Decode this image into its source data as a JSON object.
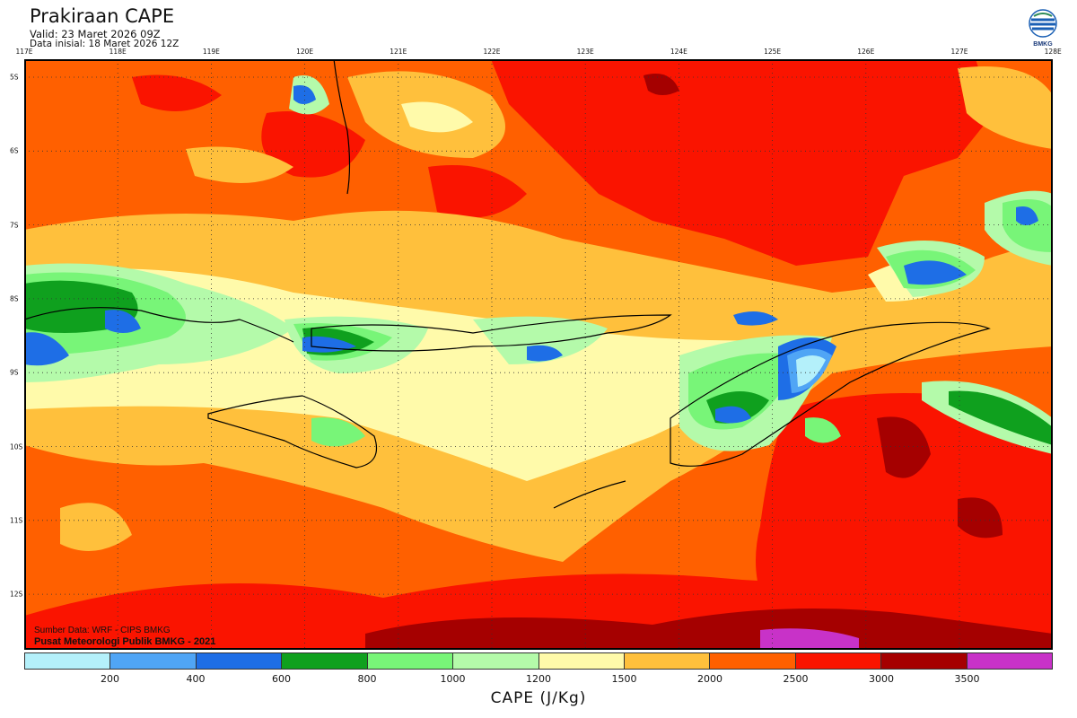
{
  "header": {
    "title": "Prakiraan CAPE",
    "valid": "Valid: 23 Maret  2026 09Z",
    "initial": "Data inisial: 18 Maret 2026 12Z"
  },
  "logo": {
    "text": "BMKG"
  },
  "axes": {
    "lon_labels": [
      "117E",
      "118E",
      "119E",
      "120E",
      "121E",
      "122E",
      "123E",
      "124E",
      "125E",
      "126E",
      "127E",
      "128E"
    ],
    "lat_labels": [
      "5S",
      "6S",
      "7S",
      "8S",
      "9S",
      "10S",
      "11S",
      "12S"
    ]
  },
  "credits": {
    "source": "Sumber Data: WRF - CIPS BMKG",
    "producer": "Pusat Meteorologi Publik BMKG - 2021"
  },
  "chart_data": {
    "type": "heatmap",
    "title": "Prakiraan CAPE",
    "xlabel": "CAPE (J/Kg)",
    "lon_range": [
      117,
      128
    ],
    "lat_range": [
      -12.75,
      -4.75
    ],
    "levels": [
      200,
      400,
      600,
      800,
      1000,
      1200,
      1500,
      2000,
      2500,
      3000,
      3500
    ],
    "level_labels": [
      "200",
      "400",
      "600",
      "800",
      "1000",
      "1200",
      "1500",
      "2000",
      "2500",
      "3000",
      "3500"
    ],
    "colors": [
      "#b4f0fa",
      "#50a5f5",
      "#1e6ee6",
      "#0fa01e",
      "#78f578",
      "#b4faaa",
      "#fffaaa",
      "#ffc03c",
      "#ff6000",
      "#fa1400",
      "#a50000",
      "#c832c8"
    ]
  }
}
